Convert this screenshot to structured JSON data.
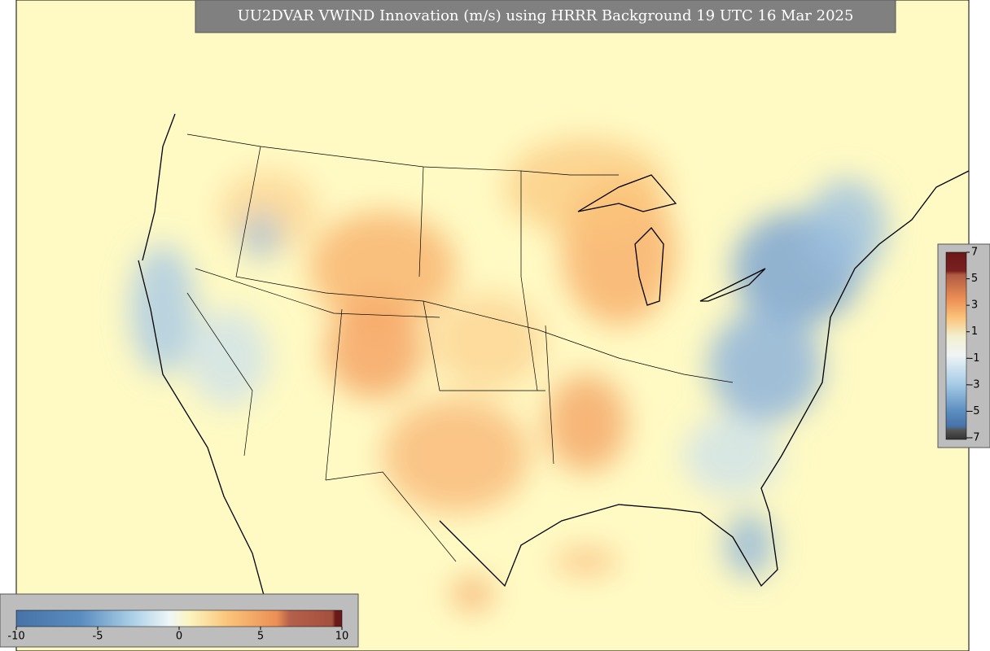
{
  "title": "UU2DVAR VWIND Innovation (m/s) using HRRR Background 19 UTC 16 Mar 2025",
  "colorbars": [
    {
      "ticks": [
        -10,
        -5,
        0,
        5,
        10
      ]
    },
    {
      "ticks": [
        7,
        5,
        3,
        1,
        -1,
        -3,
        -5,
        -7
      ]
    }
  ]
}
